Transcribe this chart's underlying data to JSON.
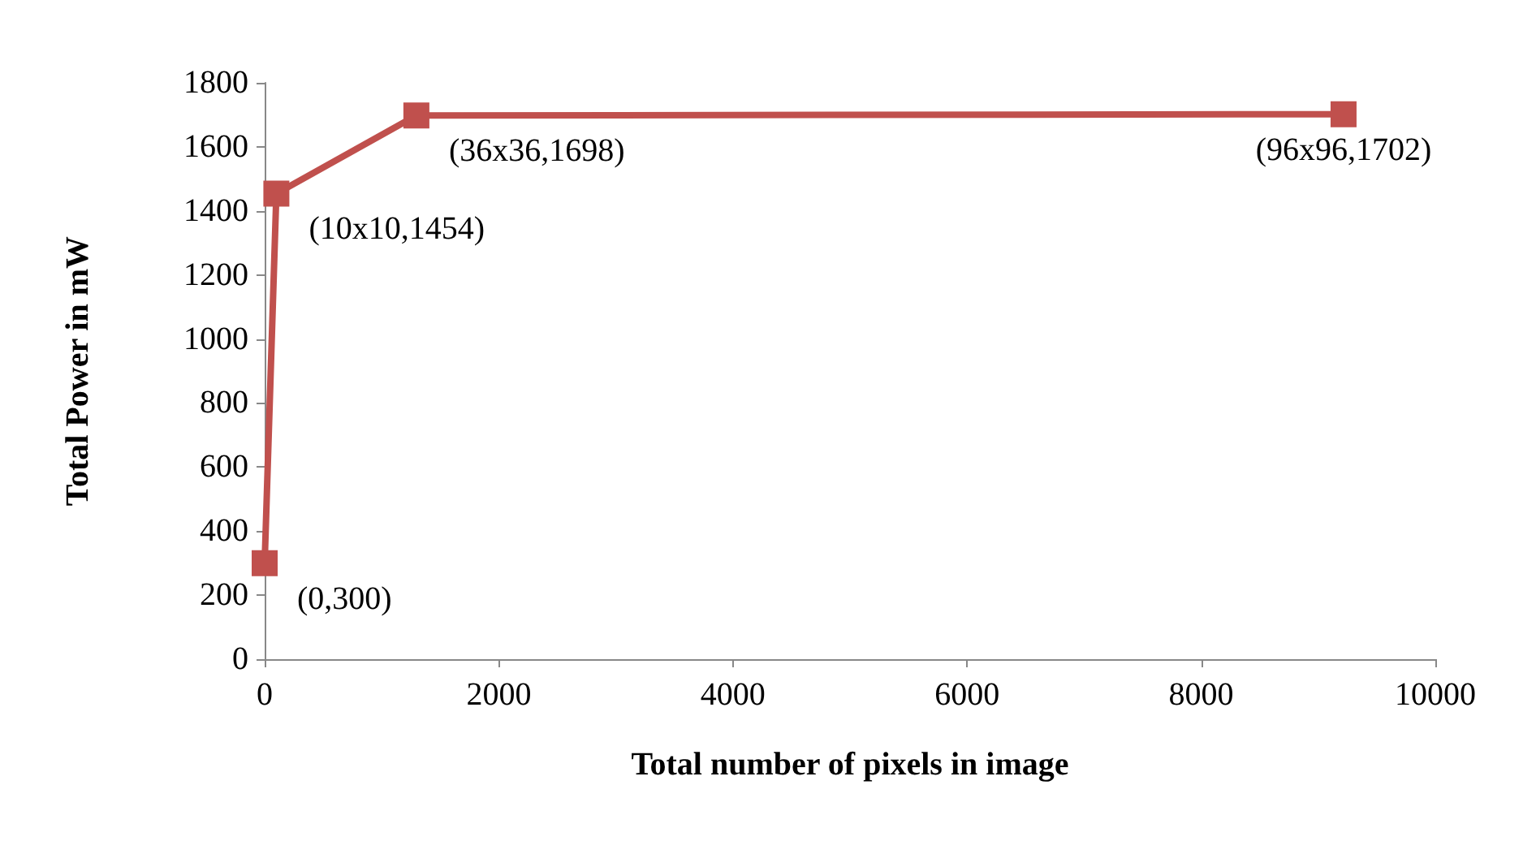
{
  "chart_data": {
    "type": "line",
    "xlabel": "Total number of pixels in image",
    "ylabel": "Total Power in mW",
    "x": [
      0,
      100,
      1296,
      9216
    ],
    "series": [
      {
        "color": "#c0504d",
        "values": [
          300,
          1454,
          1698,
          1702
        ]
      }
    ],
    "xlim": [
      0,
      10000
    ],
    "xticks": [
      0,
      2000,
      4000,
      6000,
      8000,
      10000
    ],
    "ylim": [
      0,
      1800
    ],
    "yticks": [
      0,
      200,
      400,
      600,
      800,
      1000,
      1200,
      1400,
      1600,
      1800
    ],
    "grid": false,
    "marker": "square",
    "line_style": "solid",
    "annotations": [
      {
        "text": "(0,300)",
        "x": 0,
        "y": 300
      },
      {
        "text": "(10x10,1454)",
        "x": 100,
        "y": 1454
      },
      {
        "text": "(36x36,1698)",
        "x": 1296,
        "y": 1698
      },
      {
        "text": "(96x96,1702)",
        "x": 9216,
        "y": 1702
      }
    ]
  }
}
